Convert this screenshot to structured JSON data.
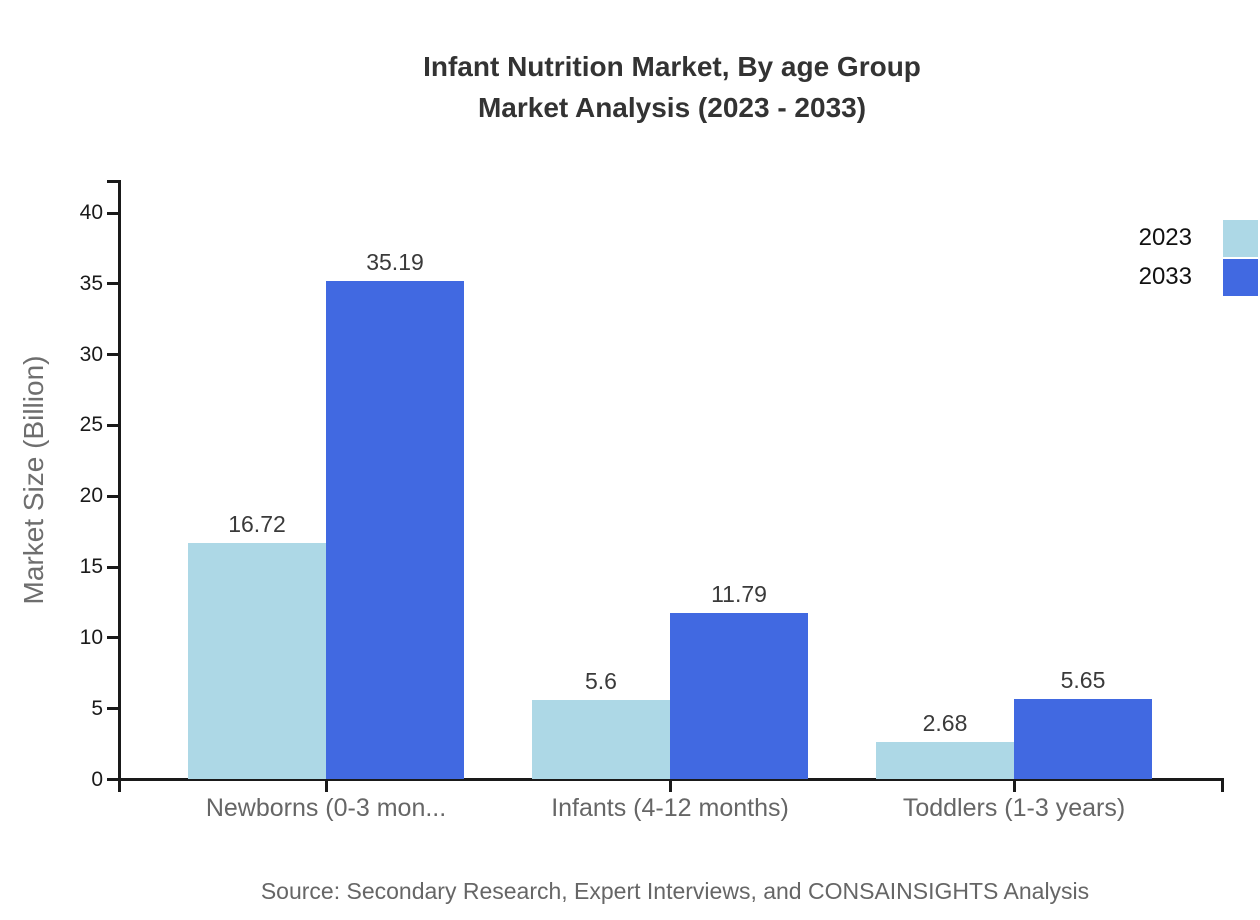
{
  "title": {
    "line1": "Infant Nutrition Market, By age Group",
    "line2": "Market Analysis (2023 - 2033)"
  },
  "source": "Source: Secondary Research, Expert Interviews, and CONSAINSIGHTS Analysis",
  "colors": {
    "series_2023": "#ADD8E6",
    "series_2033": "#4169E1",
    "axis": "#1a1a1a",
    "title_text": "#333333",
    "muted_text": "#666666"
  },
  "chart_data": {
    "type": "bar",
    "title": "Infant Nutrition Market, By age Group Market Analysis (2023 - 2033)",
    "categories": [
      "Newborns (0-3 mon...",
      "Infants (4-12 months)",
      "Toddlers (1-3 years)"
    ],
    "series": [
      {
        "name": "2023",
        "color": "#ADD8E6",
        "values": [
          16.72,
          5.6,
          2.68
        ]
      },
      {
        "name": "2033",
        "color": "#4169E1",
        "values": [
          35.19,
          11.79,
          5.65
        ]
      }
    ],
    "xlabel": "",
    "ylabel": "Market Size (Billion)",
    "ylim": [
      0,
      40
    ],
    "y_ticks": [
      0,
      5,
      10,
      15,
      20,
      25,
      30,
      35,
      40
    ],
    "grid": false,
    "value_labels": true,
    "legend_position": "right-edge"
  }
}
